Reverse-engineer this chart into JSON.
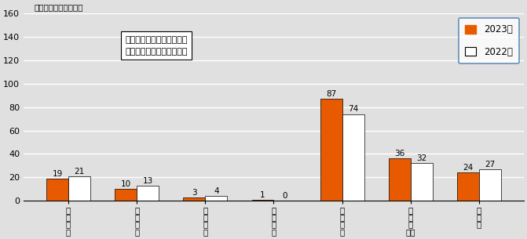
{
  "categories": [
    "火災救助",
    "交通事故",
    "水難事故",
    "機械事故",
    "建物事故",
    "虚報・誤報",
    "その他"
  ],
  "cat_lines": [
    [
      "火",
      "災",
      "救",
      "助"
    ],
    [
      "交",
      "通",
      "事",
      "故"
    ],
    [
      "水",
      "難",
      "事",
      "故"
    ],
    [
      "機",
      "械",
      "事",
      "故"
    ],
    [
      "建",
      "物",
      "事",
      "故"
    ],
    [
      "虚",
      "報",
      "・",
      "誤報"
    ],
    [
      "そ",
      "の",
      "他"
    ]
  ],
  "values_2023": [
    19,
    10,
    3,
    1,
    87,
    36,
    24
  ],
  "values_2022": [
    21,
    13,
    4,
    0,
    74,
    32,
    27
  ],
  "color_2023": "#E85A00",
  "color_2022": "#FFFFFF",
  "color_2022_edge": "#000000",
  "ylim": [
    0,
    160
  ],
  "yticks": [
    0,
    20,
    40,
    60,
    80,
    100,
    120,
    140,
    160
  ],
  "ylabel": "（件）【事故別内訳】",
  "annotation_line1": "２０２３年総件数１８０件",
  "annotation_line2": "２０２２年総件数１７１件",
  "legend_2023": "2023年",
  "legend_2022": "2022年",
  "bg_color": "#E0E0E0",
  "grid_color": "#FFFFFF",
  "bar_width": 0.32
}
